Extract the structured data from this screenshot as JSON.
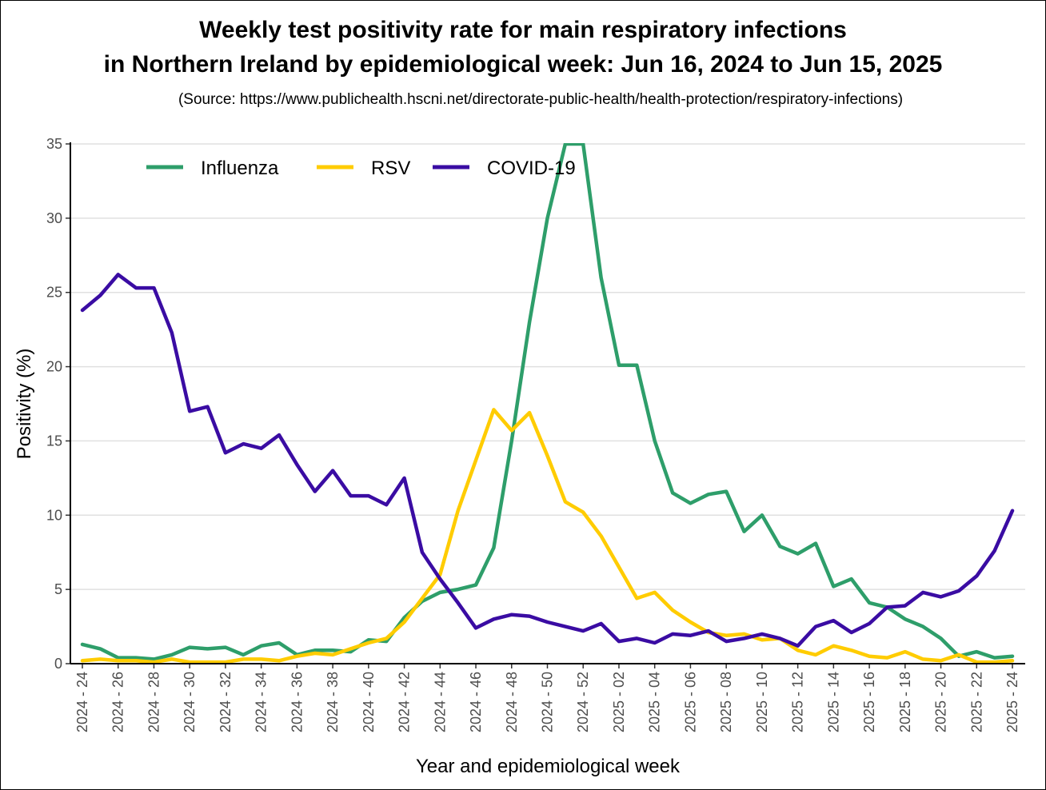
{
  "title_line1": "Weekly test positivity rate for main respiratory infections",
  "title_line2": "in Northern Ireland by epidemiological week: Jun 16, 2024 to Jun 15, 2025",
  "subtitle": "(Source: https://www.publichealth.hscni.net/directorate-public-health/health-protection/respiratory-infections)",
  "chart_data": {
    "type": "line",
    "xlabel": "Year and epidemiological week",
    "ylabel": "Positivity (%)",
    "ylim": [
      0,
      35
    ],
    "yticks": [
      0,
      5,
      10,
      15,
      20,
      25,
      30,
      35
    ],
    "grid": "horizontal",
    "legend_position": "top-left",
    "x": [
      "2024 - 24",
      "2024 - 25",
      "2024 - 26",
      "2024 - 27",
      "2024 - 28",
      "2024 - 29",
      "2024 - 30",
      "2024 - 31",
      "2024 - 32",
      "2024 - 33",
      "2024 - 34",
      "2024 - 35",
      "2024 - 36",
      "2024 - 37",
      "2024 - 38",
      "2024 - 39",
      "2024 - 40",
      "2024 - 41",
      "2024 - 42",
      "2024 - 43",
      "2024 - 44",
      "2024 - 45",
      "2024 - 46",
      "2024 - 47",
      "2024 - 48",
      "2024 - 49",
      "2024 - 50",
      "2024 - 51",
      "2024 - 52",
      "2025 - 01",
      "2025 - 02",
      "2025 - 03",
      "2025 - 04",
      "2025 - 05",
      "2025 - 06",
      "2025 - 07",
      "2025 - 08",
      "2025 - 09",
      "2025 - 10",
      "2025 - 11",
      "2025 - 12",
      "2025 - 13",
      "2025 - 14",
      "2025 - 15",
      "2025 - 16",
      "2025 - 17",
      "2025 - 18",
      "2025 - 19",
      "2025 - 20",
      "2025 - 21",
      "2025 - 22",
      "2025 - 23",
      "2025 - 24"
    ],
    "xtick_labels": [
      "2024 - 24",
      "2024 - 26",
      "2024 - 28",
      "2024 - 30",
      "2024 - 32",
      "2024 - 34",
      "2024 - 36",
      "2024 - 38",
      "2024 - 40",
      "2024 - 42",
      "2024 - 44",
      "2024 - 46",
      "2024 - 48",
      "2024 - 50",
      "2024 - 52",
      "2025 - 02",
      "2025 - 04",
      "2025 - 06",
      "2025 - 08",
      "2025 - 10",
      "2025 - 12",
      "2025 - 14",
      "2025 - 16",
      "2025 - 18",
      "2025 - 20",
      "2025 - 22",
      "2025 - 24"
    ],
    "series": [
      {
        "name": "Influenza",
        "color": "#2e9e6a",
        "values": [
          1.3,
          1.0,
          0.4,
          0.4,
          0.3,
          0.6,
          1.1,
          1.0,
          1.1,
          0.6,
          1.2,
          1.4,
          0.6,
          0.9,
          0.9,
          0.8,
          1.6,
          1.5,
          3.1,
          4.2,
          4.8,
          5.0,
          5.3,
          7.8,
          15.0,
          23.0,
          30.0,
          35.0,
          35.0,
          26.0,
          20.1,
          20.1,
          15.0,
          11.5,
          10.8,
          11.4,
          11.6,
          8.9,
          10.0,
          7.9,
          7.4,
          8.1,
          5.2,
          5.7,
          4.1,
          3.8,
          3.0,
          2.5,
          1.7,
          0.5,
          0.8,
          0.4,
          0.5
        ]
      },
      {
        "name": "RSV",
        "color": "#ffcc00",
        "values": [
          0.2,
          0.3,
          0.2,
          0.2,
          0.1,
          0.3,
          0.1,
          0.1,
          0.1,
          0.3,
          0.3,
          0.2,
          0.5,
          0.7,
          0.6,
          1.0,
          1.4,
          1.7,
          2.8,
          4.4,
          6.0,
          10.3,
          13.7,
          17.1,
          15.7,
          16.9,
          14.0,
          10.9,
          10.2,
          8.6,
          6.5,
          4.4,
          4.8,
          3.6,
          2.8,
          2.1,
          1.9,
          2.0,
          1.6,
          1.7,
          0.9,
          0.6,
          1.2,
          0.9,
          0.5,
          0.4,
          0.8,
          0.3,
          0.2,
          0.6,
          0.1,
          0.1,
          0.2
        ]
      },
      {
        "name": "COVID-19",
        "color": "#3a0ca3",
        "values": [
          23.8,
          24.8,
          26.2,
          25.3,
          25.3,
          22.3,
          17.0,
          17.3,
          14.2,
          14.8,
          14.5,
          15.4,
          13.4,
          11.6,
          13.0,
          11.3,
          11.3,
          10.7,
          12.5,
          7.5,
          5.7,
          4.1,
          2.4,
          3.0,
          3.3,
          3.2,
          2.8,
          2.5,
          2.2,
          2.7,
          1.5,
          1.7,
          1.4,
          2.0,
          1.9,
          2.2,
          1.5,
          1.7,
          2.0,
          1.7,
          1.2,
          2.5,
          2.9,
          2.1,
          2.7,
          3.8,
          3.9,
          4.8,
          4.5,
          4.9,
          5.9,
          7.6,
          10.3
        ]
      }
    ]
  }
}
